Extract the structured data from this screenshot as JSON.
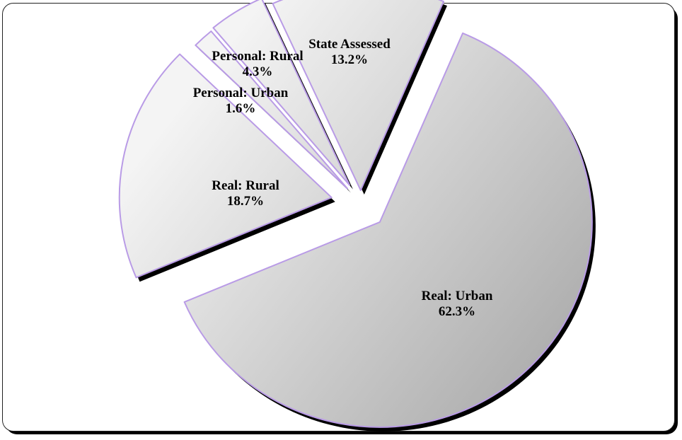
{
  "chart_data": {
    "type": "pie",
    "title": "",
    "legend": "none",
    "exploded": true,
    "slices": [
      {
        "label": "Real: Urban",
        "value": 62.3,
        "value_label": "62.3%"
      },
      {
        "label": "Real: Rural",
        "value": 18.7,
        "value_label": "18.7%"
      },
      {
        "label": "Personal: Urban",
        "value": 1.6,
        "value_label": "1.6%"
      },
      {
        "label": "Personal: Rural",
        "value": 4.3,
        "value_label": "4.3%"
      },
      {
        "label": "State Assessed",
        "value": 13.2,
        "value_label": "13.2%"
      }
    ]
  },
  "colors": {
    "slice_fill_light": "#f4f4f4",
    "slice_fill_dark": "#a9a9a9",
    "slice_outline": "#b99be6",
    "slice_shadow": "#000000"
  }
}
